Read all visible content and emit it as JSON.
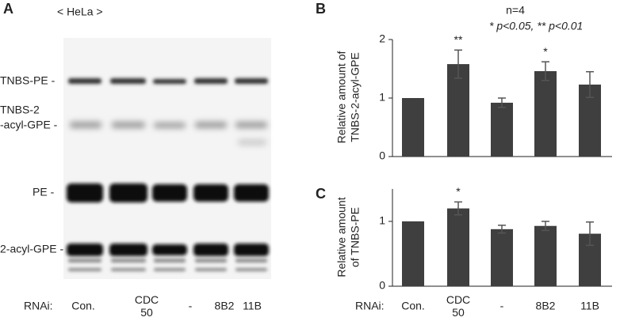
{
  "panel_a": {
    "label": "A",
    "title": "< HeLa >",
    "bands": [
      "TNBS-PE -",
      "TNBS-2",
      "-acyl-GPE -",
      "PE -",
      "2-acyl-GPE -"
    ],
    "xlabel": "RNAi:",
    "lanes": [
      "Con.",
      "CDC\n50",
      "-",
      "8B2",
      "11B"
    ]
  },
  "chart_data": [
    {
      "type": "bar",
      "panel": "B",
      "ylabel": [
        "Relative  amount of",
        "TNBS-2-acyl-GPE"
      ],
      "note": "n=4",
      "legend_note": "* p<0.05, ** p<0.01",
      "values": [
        1,
        1.58,
        0.92,
        1.46,
        1.23
      ],
      "errors": [
        0,
        0.24,
        0.08,
        0.16,
        0.22
      ],
      "annotations": [
        null,
        "**",
        null,
        "*",
        null
      ],
      "color": "#3f3f3f",
      "ylim": [
        0,
        2
      ],
      "yticks": [
        0,
        1,
        2
      ]
    },
    {
      "type": "bar",
      "panel": "C",
      "ylabel": [
        "Relative  amount",
        "of TNBS-PE"
      ],
      "xlabel": "RNAi:",
      "categories": [
        "Con.",
        "CDC\n50",
        "-",
        "8B2",
        "11B"
      ],
      "values": [
        1,
        1.2,
        0.88,
        0.93,
        0.81
      ],
      "errors": [
        0,
        0.1,
        0.06,
        0.07,
        0.18
      ],
      "annotations": [
        null,
        "*",
        null,
        null,
        null
      ],
      "color": "#3f3f3f",
      "ylim": [
        0,
        1.5
      ],
      "yticks": [
        0,
        1
      ]
    }
  ]
}
